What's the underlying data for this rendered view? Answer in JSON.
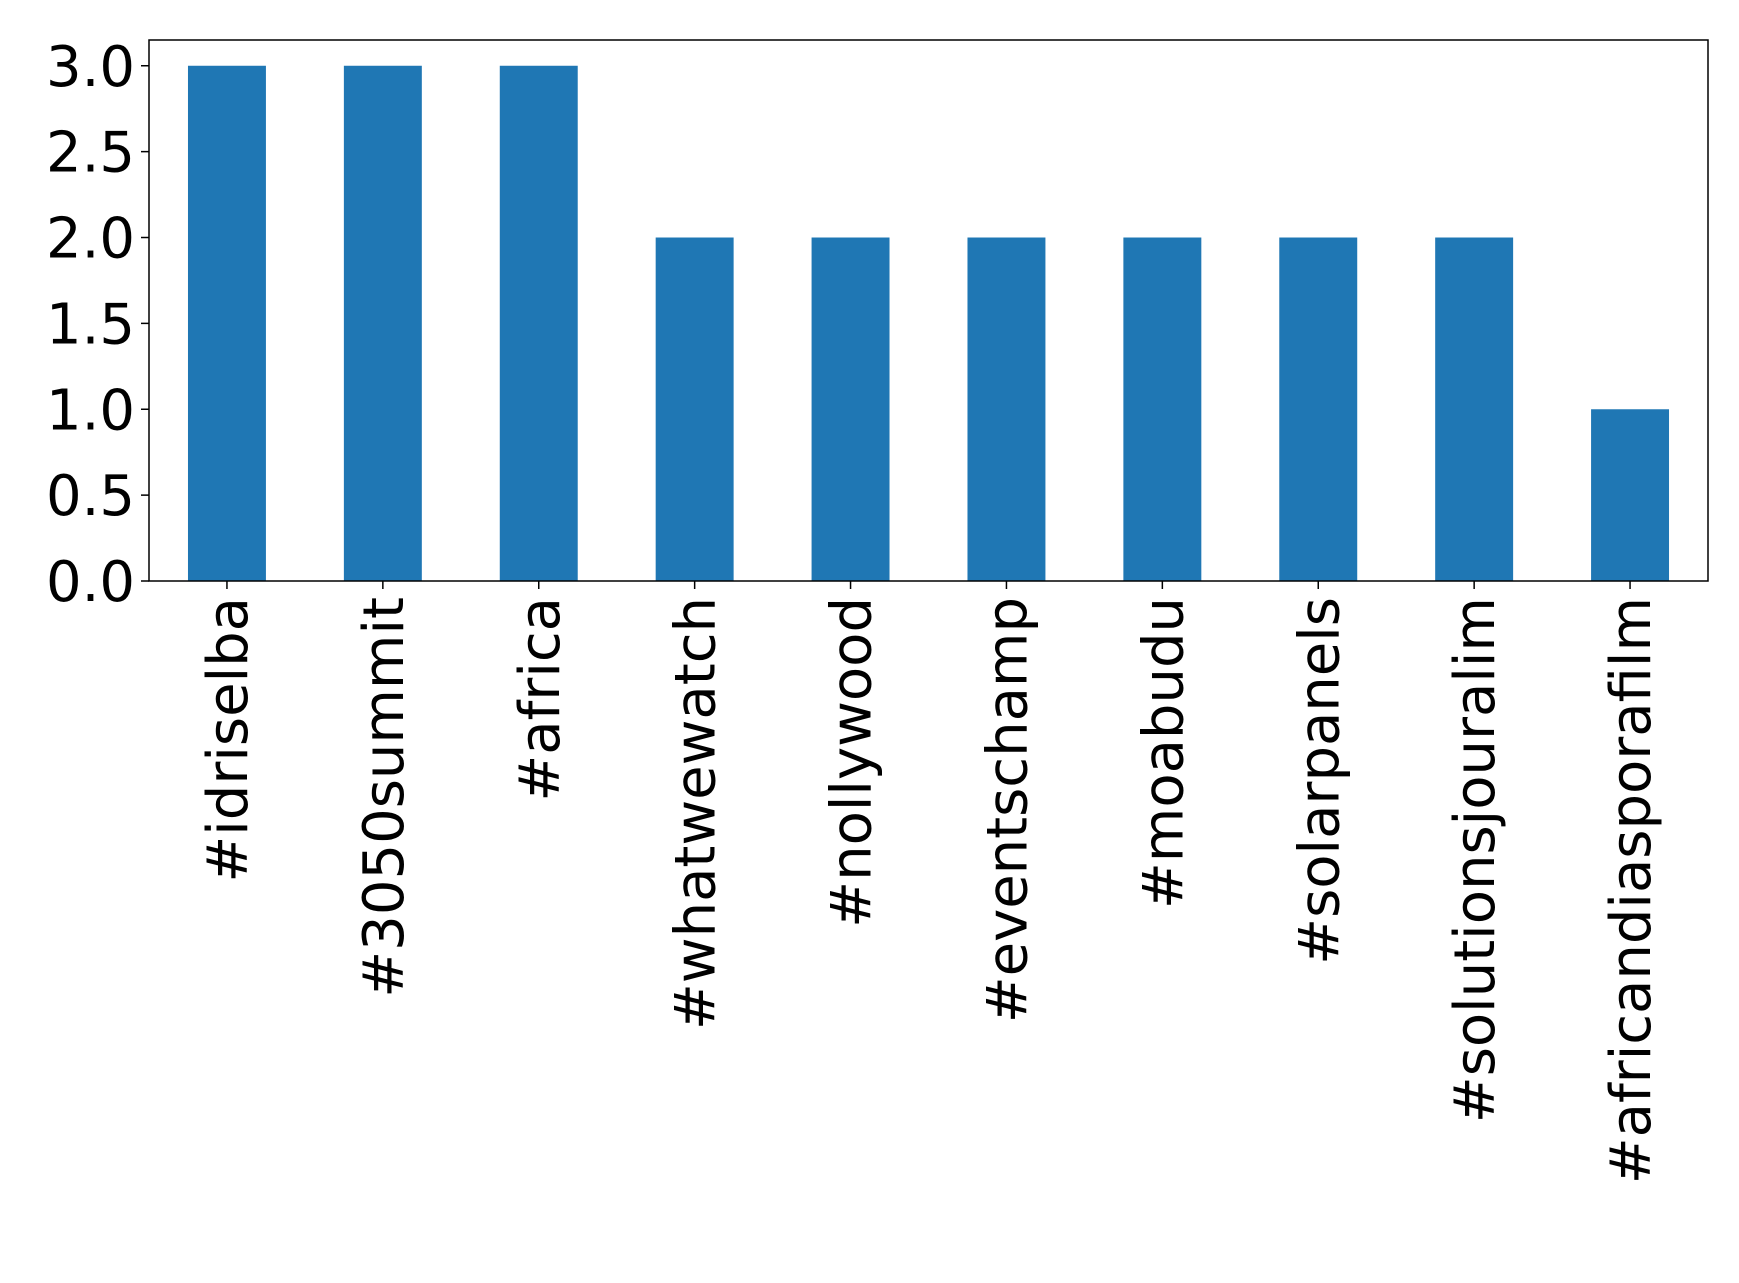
{
  "chart_data": {
    "type": "bar",
    "categories": [
      "#idriselba",
      "#3050summit",
      "#africa",
      "#whatwewatch",
      "#nollywood",
      "#eventschamp",
      "#moabudu",
      "#solarpanels",
      "#solutionsjouralim",
      "#africandiasporafilm"
    ],
    "values": [
      3,
      3,
      3,
      2,
      2,
      2,
      2,
      2,
      2,
      1
    ],
    "color": "#1f77b4",
    "ylim": [
      0,
      3.15
    ],
    "yticks": [
      {
        "value": 0,
        "label": "0.0"
      },
      0.5,
      {
        "value": 1,
        "label": "1.0"
      },
      1.5,
      {
        "value": 2,
        "label": "2.0"
      },
      2.5,
      {
        "value": 3,
        "label": "3.0"
      }
    ],
    "grid": false
  }
}
